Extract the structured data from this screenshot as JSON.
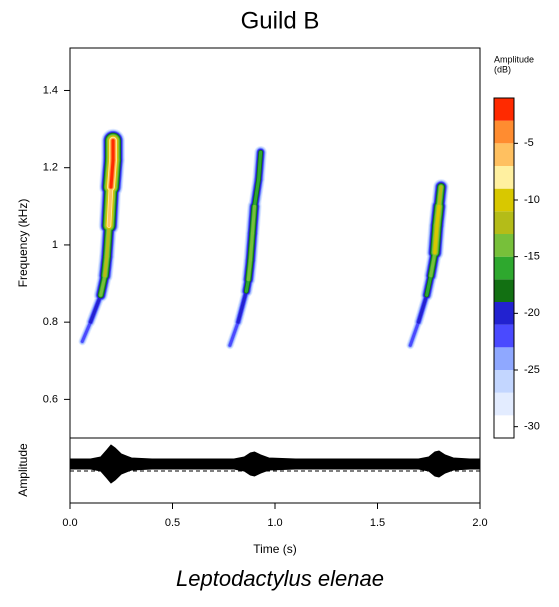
{
  "chart_data": {
    "type": "spectrogram",
    "title": "Guild B",
    "caption": "Leptodactylus elenae",
    "x_label": "Time (s)",
    "y_label": "Frequency (kHz)",
    "oscillogram_label": "Amplitude",
    "colorbar_label": [
      "Amplitude",
      "(dB)"
    ],
    "xlim": [
      0,
      2
    ],
    "xticks": [
      {
        "value": 0,
        "label": "0.0"
      },
      0.5,
      {
        "value": 1,
        "label": "1.0"
      },
      1.5,
      {
        "value": 2,
        "label": "2.0"
      }
    ],
    "ylim": [
      0.5,
      1.51
    ],
    "yticks": [
      0.6,
      0.8,
      1,
      1.2,
      1.4
    ],
    "zlim": [
      -31,
      -1
    ],
    "zticks": [
      -30,
      -25,
      -20,
      -15,
      -10,
      -5
    ],
    "zstep": 2,
    "colors": [
      "#ffffff",
      "#e3ecff",
      "#c3d6ff",
      "#8fa8ff",
      "#4a4aff",
      "#2222d0",
      "#127012",
      "#2ea82e",
      "#77c03a",
      "#b4bc18",
      "#d8c800",
      "#fff0a0",
      "#ffc060",
      "#ff8c30",
      "#ff2a00"
    ],
    "calls": [
      {
        "t": [
          0.06,
          0.1,
          0.15,
          0.17,
          0.18,
          0.19,
          0.2,
          0.21,
          0.21
        ],
        "f": [
          0.75,
          0.8,
          0.87,
          0.92,
          0.97,
          1.05,
          1.15,
          1.22,
          1.27
        ],
        "db": [
          -25,
          -23,
          -20,
          -15,
          -12,
          -16,
          -6,
          -2,
          -14
        ]
      },
      {
        "t": [
          0.78,
          0.82,
          0.86,
          0.87,
          0.88,
          0.89,
          0.9,
          0.92,
          0.93
        ],
        "f": [
          0.74,
          0.8,
          0.88,
          0.91,
          0.96,
          1.03,
          1.1,
          1.17,
          1.24
        ],
        "db": [
          -25,
          -23,
          -20,
          -17,
          -15,
          -14,
          -18,
          -17,
          -22
        ]
      },
      {
        "t": [
          1.66,
          1.7,
          1.74,
          1.76,
          1.78,
          1.79,
          1.8,
          1.81
        ],
        "f": [
          0.74,
          0.8,
          0.87,
          0.92,
          0.98,
          1.05,
          1.1,
          1.15
        ],
        "db": [
          -25,
          -23,
          -20,
          -17,
          -14,
          -10,
          -12,
          -19
        ]
      }
    ],
    "oscillogram": {
      "t": [
        0,
        0.1,
        0.15,
        0.18,
        0.2,
        0.22,
        0.25,
        0.3,
        0.4,
        0.6,
        0.8,
        0.85,
        0.88,
        0.9,
        0.93,
        0.97,
        1.1,
        1.3,
        1.5,
        1.7,
        1.75,
        1.78,
        1.8,
        1.83,
        1.87,
        1.95,
        2
      ],
      "envelope": [
        0.25,
        0.25,
        0.35,
        0.7,
        0.95,
        0.8,
        0.5,
        0.3,
        0.25,
        0.25,
        0.25,
        0.35,
        0.55,
        0.6,
        0.45,
        0.3,
        0.25,
        0.25,
        0.25,
        0.25,
        0.35,
        0.6,
        0.65,
        0.45,
        0.3,
        0.25,
        0.25
      ]
    }
  }
}
